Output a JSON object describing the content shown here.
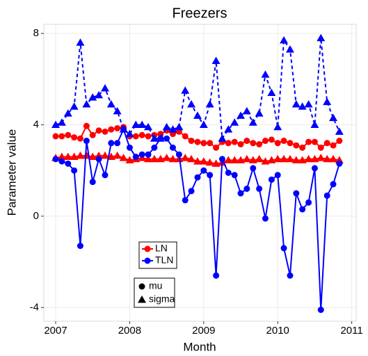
{
  "chart_data": {
    "type": "line",
    "title": "Freezers",
    "x_label": "Month",
    "y_label": "Parameter value",
    "x": [
      2007,
      2007.083,
      2007.167,
      2007.25,
      2007.333,
      2007.417,
      2007.5,
      2007.583,
      2007.667,
      2007.75,
      2007.833,
      2007.917,
      2008,
      2008.083,
      2008.167,
      2008.25,
      2008.333,
      2008.417,
      2008.5,
      2008.583,
      2008.667,
      2008.75,
      2008.833,
      2008.917,
      2009,
      2009.083,
      2009.167,
      2009.25,
      2009.333,
      2009.417,
      2009.5,
      2009.583,
      2009.667,
      2009.75,
      2009.833,
      2009.917,
      2010,
      2010.083,
      2010.167,
      2010.25,
      2010.333,
      2010.417,
      2010.5,
      2010.583,
      2010.667,
      2010.75,
      2010.833
    ],
    "groups": [
      {
        "name": "LN",
        "color": "#ff0000",
        "series": [
          {
            "dash": "solid",
            "values": [
              3.5,
              3.5,
              3.55,
              3.45,
              3.4,
              3.95,
              3.55,
              3.75,
              3.7,
              3.8,
              3.85,
              3.9,
              3.5,
              3.5,
              3.55,
              3.5,
              3.55,
              3.6,
              3.75,
              3.6,
              3.7,
              3.5,
              3.3,
              3.25,
              3.2,
              3.2,
              3.0,
              3.25,
              3.2,
              3.25,
              3.15,
              3.3,
              3.2,
              3.15,
              3.3,
              3.35,
              3.2,
              3.3,
              3.2,
              3.1,
              3.0,
              3.25,
              3.25,
              3.0,
              3.2,
              3.1,
              3.3
            ]
          },
          {
            "dash": "solid",
            "values": [
              2.55,
              2.6,
              2.6,
              2.6,
              2.65,
              2.65,
              2.6,
              2.65,
              2.65,
              2.6,
              2.65,
              2.55,
              2.45,
              2.5,
              2.55,
              2.5,
              2.5,
              2.5,
              2.55,
              2.5,
              2.5,
              2.55,
              2.5,
              2.4,
              2.4,
              2.35,
              2.3,
              2.35,
              2.45,
              2.45,
              2.45,
              2.5,
              2.45,
              2.5,
              2.4,
              2.45,
              2.5,
              2.5,
              2.5,
              2.45,
              2.45,
              2.5,
              2.5,
              2.55,
              2.5,
              2.5,
              2.45
            ]
          }
        ]
      },
      {
        "name": "TLN",
        "color": "#0000ff",
        "series": [
          {
            "dash": "solid",
            "values": [
              2.5,
              2.4,
              2.3,
              2.0,
              -1.3,
              3.3,
              1.5,
              2.5,
              1.8,
              3.2,
              3.2,
              3.8,
              3.0,
              2.6,
              2.7,
              2.7,
              3.0,
              3.4,
              3.4,
              3.0,
              2.7,
              0.7,
              1.1,
              1.7,
              2.0,
              1.8,
              -2.6,
              2.5,
              1.9,
              1.8,
              1.0,
              1.2,
              2.1,
              1.2,
              -0.1,
              1.6,
              1.8,
              -1.4,
              -2.6,
              1.0,
              0.3,
              0.6,
              2.1,
              -4.1,
              0.9,
              1.4,
              2.3
            ]
          },
          {
            "dash": "dashed",
            "values": [
              4.0,
              4.1,
              4.5,
              4.8,
              7.6,
              4.9,
              5.2,
              5.3,
              5.6,
              4.9,
              4.6,
              3.8,
              3.6,
              4.0,
              4.0,
              3.9,
              3.4,
              3.4,
              3.9,
              3.8,
              3.9,
              5.5,
              4.9,
              4.4,
              4.0,
              4.9,
              6.8,
              3.4,
              3.8,
              4.1,
              4.4,
              4.6,
              4.1,
              4.5,
              6.2,
              5.4,
              3.9,
              7.7,
              7.3,
              4.9,
              4.8,
              4.9,
              4.0,
              7.8,
              5.0,
              4.3,
              3.7
            ]
          }
        ]
      }
    ],
    "markers": [
      {
        "name": "mu",
        "shape": "circle"
      },
      {
        "name": "sigma",
        "shape": "triangle"
      }
    ],
    "xlim": [
      2006.84,
      2011.06
    ],
    "xticks": [
      2007,
      2008,
      2009,
      2010,
      2011
    ],
    "ylim": [
      -4.6,
      8.4
    ],
    "yticks": [
      -4,
      0,
      4,
      8
    ],
    "grid": true
  }
}
